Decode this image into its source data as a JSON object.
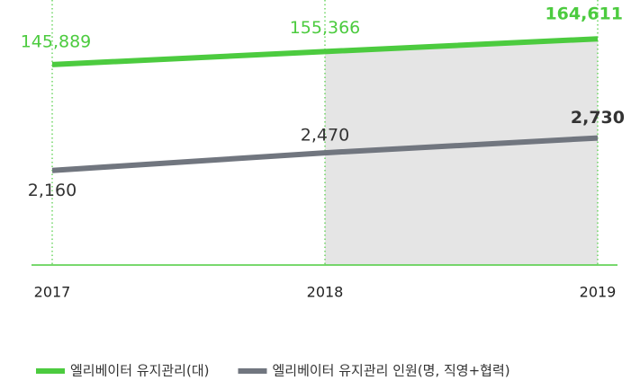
{
  "chart_data": {
    "type": "line",
    "categories": [
      "2017",
      "2018",
      "2019"
    ],
    "series": [
      {
        "name": "엘리베이터 유지관리(대)",
        "color": "#4ccb3f",
        "values": [
          145889,
          155366,
          164611
        ],
        "value_labels": [
          "145,889",
          "155,366",
          "164,611"
        ]
      },
      {
        "name": "엘리베이터 유지관리 인원(명, 직영+협력)",
        "color": "#71767f",
        "axis": "y2",
        "values": [
          2160,
          2470,
          2730
        ],
        "value_labels": [
          "2,160",
          "2,470",
          "2,730"
        ]
      }
    ],
    "ylim": [
      0,
      170000
    ],
    "y2lim": [
      500,
      4600
    ],
    "legend": "bottom"
  }
}
